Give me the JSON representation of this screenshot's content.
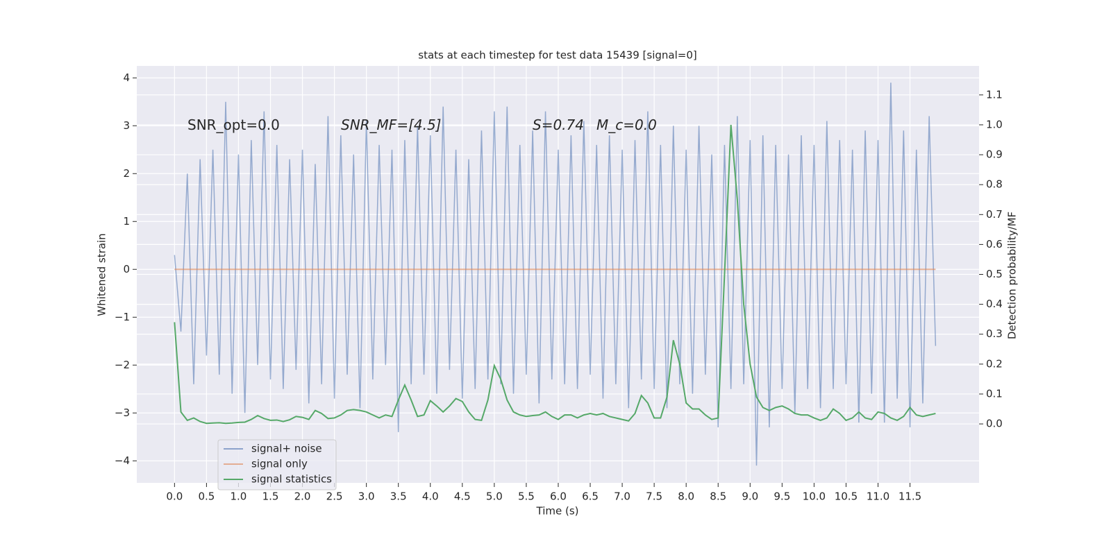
{
  "chart_data": {
    "type": "line",
    "title": "stats at each timestep for test data 15439 [signal=0]",
    "x_label": "Time (s)",
    "y_label": "Whitened strain",
    "y2_label": "Detection probability/MF",
    "annotations": [
      "SNR_opt=0.0",
      "SNR_MF=[4.5]",
      "S=0.74",
      "M_c=0.0"
    ],
    "x": [
      0,
      0.1,
      0.2,
      0.3,
      0.4,
      0.5,
      0.6,
      0.7,
      0.8,
      0.9,
      1,
      1.1,
      1.2,
      1.3,
      1.4,
      1.5,
      1.6,
      1.7,
      1.8,
      1.9,
      2,
      2.1,
      2.2,
      2.3,
      2.4,
      2.5,
      2.6,
      2.7,
      2.8,
      2.9,
      3,
      3.1,
      3.2,
      3.3,
      3.4,
      3.5,
      3.6,
      3.7,
      3.8,
      3.9,
      4,
      4.1,
      4.2,
      4.3,
      4.4,
      4.5,
      4.6,
      4.7,
      4.8,
      4.9,
      5,
      5.1,
      5.2,
      5.3,
      5.4,
      5.5,
      5.6,
      5.7,
      5.8,
      5.9,
      6,
      6.1,
      6.2,
      6.3,
      6.4,
      6.5,
      6.6,
      6.7,
      6.8,
      6.9,
      7,
      7.1,
      7.2,
      7.3,
      7.4,
      7.5,
      7.6,
      7.7,
      7.8,
      7.9,
      8,
      8.1,
      8.2,
      8.3,
      8.4,
      8.5,
      8.6,
      8.7,
      8.8,
      8.9,
      9,
      9.1,
      9.2,
      9.3,
      9.4,
      9.5,
      9.6,
      9.7,
      9.8,
      9.9,
      10,
      10.1,
      10.2,
      10.3,
      10.4,
      10.5,
      10.6,
      10.7,
      10.8,
      10.9,
      11,
      11.1,
      11.2,
      11.3,
      11.4,
      11.5,
      11.6,
      11.7,
      11.8,
      11.9
    ],
    "series": [
      {
        "name": "signal+ noise",
        "color": "#4c72b0",
        "axis": "y",
        "values": [
          0.3,
          -1.3,
          2.0,
          -2.4,
          2.3,
          -1.8,
          2.5,
          -2.2,
          3.5,
          -2.6,
          2.4,
          -3.0,
          2.7,
          -2.0,
          3.3,
          -2.3,
          2.6,
          -2.5,
          2.3,
          -2.1,
          2.5,
          -2.8,
          2.2,
          -2.4,
          3.2,
          -2.7,
          2.8,
          -2.2,
          2.4,
          -2.9,
          3.1,
          -2.3,
          2.6,
          -2.0,
          2.5,
          -3.4,
          2.7,
          -2.4,
          3.0,
          -2.2,
          2.8,
          -2.6,
          3.4,
          -2.1,
          2.5,
          -2.7,
          2.3,
          -2.5,
          2.9,
          -2.3,
          3.3,
          -2.4,
          3.4,
          -2.6,
          2.6,
          -2.2,
          2.9,
          -2.8,
          3.3,
          -2.3,
          2.5,
          -2.4,
          2.8,
          -2.5,
          3.1,
          -2.2,
          2.6,
          -2.7,
          2.8,
          -2.4,
          2.5,
          -2.9,
          2.7,
          -2.3,
          3.3,
          -2.5,
          2.6,
          -2.9,
          3.0,
          -2.4,
          2.5,
          -2.6,
          3.0,
          -2.2,
          2.4,
          -3.3,
          2.6,
          -2.5,
          3.2,
          -2.4,
          2.7,
          -4.1,
          2.8,
          -3.3,
          2.6,
          -2.5,
          2.4,
          -3.0,
          2.8,
          -2.5,
          2.6,
          -2.9,
          3.1,
          -2.5,
          2.7,
          -2.4,
          2.5,
          -3.2,
          2.9,
          -2.6,
          2.7,
          -3.2,
          3.9,
          -2.7,
          2.9,
          -3.3,
          2.5,
          -2.8,
          3.2,
          -1.6
        ]
      },
      {
        "name": "signal only",
        "color": "#dd8452",
        "axis": "y",
        "values": [
          0,
          0,
          0,
          0,
          0,
          0,
          0,
          0,
          0,
          0,
          0,
          0,
          0,
          0,
          0,
          0,
          0,
          0,
          0,
          0,
          0,
          0,
          0,
          0,
          0,
          0,
          0,
          0,
          0,
          0,
          0,
          0,
          0,
          0,
          0,
          0,
          0,
          0,
          0,
          0,
          0,
          0,
          0,
          0,
          0,
          0,
          0,
          0,
          0,
          0,
          0,
          0,
          0,
          0,
          0,
          0,
          0,
          0,
          0,
          0,
          0,
          0,
          0,
          0,
          0,
          0,
          0,
          0,
          0,
          0,
          0,
          0,
          0,
          0,
          0,
          0,
          0,
          0,
          0,
          0,
          0,
          0,
          0,
          0,
          0,
          0,
          0,
          0,
          0,
          0,
          0,
          0,
          0,
          0,
          0,
          0,
          0,
          0,
          0,
          0,
          0,
          0,
          0,
          0,
          0,
          0,
          0,
          0,
          0,
          0,
          0,
          0,
          0,
          0,
          0,
          0,
          0,
          0,
          0,
          0
        ]
      },
      {
        "name": "signal statistics",
        "color": "#55a868",
        "axis": "y2",
        "values": [
          0.34,
          0.04,
          0.012,
          0.02,
          0.008,
          0.002,
          0.003,
          0.004,
          0.002,
          0.003,
          0.005,
          0.006,
          0.015,
          0.028,
          0.018,
          0.012,
          0.013,
          0.008,
          0.014,
          0.025,
          0.022,
          0.015,
          0.045,
          0.035,
          0.018,
          0.02,
          0.03,
          0.045,
          0.048,
          0.045,
          0.04,
          0.03,
          0.02,
          0.03,
          0.025,
          0.08,
          0.13,
          0.08,
          0.025,
          0.03,
          0.078,
          0.06,
          0.04,
          0.06,
          0.085,
          0.075,
          0.04,
          0.015,
          0.012,
          0.08,
          0.195,
          0.15,
          0.08,
          0.04,
          0.03,
          0.025,
          0.028,
          0.03,
          0.04,
          0.025,
          0.015,
          0.03,
          0.03,
          0.02,
          0.03,
          0.035,
          0.03,
          0.035,
          0.025,
          0.02,
          0.015,
          0.01,
          0.035,
          0.095,
          0.07,
          0.02,
          0.02,
          0.09,
          0.28,
          0.2,
          0.07,
          0.05,
          0.05,
          0.03,
          0.015,
          0.02,
          0.5,
          1.0,
          0.75,
          0.4,
          0.2,
          0.09,
          0.055,
          0.045,
          0.055,
          0.06,
          0.05,
          0.035,
          0.03,
          0.03,
          0.02,
          0.012,
          0.02,
          0.05,
          0.035,
          0.012,
          0.02,
          0.04,
          0.02,
          0.015,
          0.04,
          0.035,
          0.02,
          0.012,
          0.025,
          0.055,
          0.03,
          0.025,
          0.03,
          0.035
        ]
      }
    ],
    "xlim": [
      -0.59,
      12.58
    ],
    "xticks": [
      {
        "value": 0,
        "label": "0.0"
      },
      0.5,
      {
        "value": 1,
        "label": "1.0"
      },
      1.5,
      {
        "value": 2,
        "label": "2.0"
      },
      2.5,
      {
        "value": 3,
        "label": "3.0"
      },
      3.5,
      {
        "value": 4,
        "label": "4.0"
      },
      4.5,
      {
        "value": 5,
        "label": "5.0"
      },
      5.5,
      {
        "value": 6,
        "label": "6.0"
      },
      6.5,
      {
        "value": 7,
        "label": "7.0"
      },
      7.5,
      {
        "value": 8,
        "label": "8.0"
      },
      8.5,
      {
        "value": 9,
        "label": "9.0"
      },
      9.5,
      {
        "value": 10,
        "label": "10.0"
      },
      10.5,
      {
        "value": 11,
        "label": "11.0"
      },
      11.5
    ],
    "ylim": [
      -4.46,
      4.25
    ],
    "yticks": [
      {
        "value": -4,
        "label": "−4"
      },
      {
        "value": -3,
        "label": "−3"
      },
      {
        "value": -2,
        "label": "−2"
      },
      {
        "value": -1,
        "label": "−1"
      },
      0,
      1,
      2,
      3,
      4
    ],
    "y2lim": [
      -0.197,
      1.197
    ],
    "y2ticks": [
      {
        "value": 0,
        "label": "0.0"
      },
      0.1,
      0.2,
      0.3,
      0.4,
      0.5,
      0.6,
      0.7,
      0.8,
      0.9,
      {
        "value": 1,
        "label": "1.0"
      },
      1.1
    ],
    "grid": true,
    "legend": "lower left"
  }
}
